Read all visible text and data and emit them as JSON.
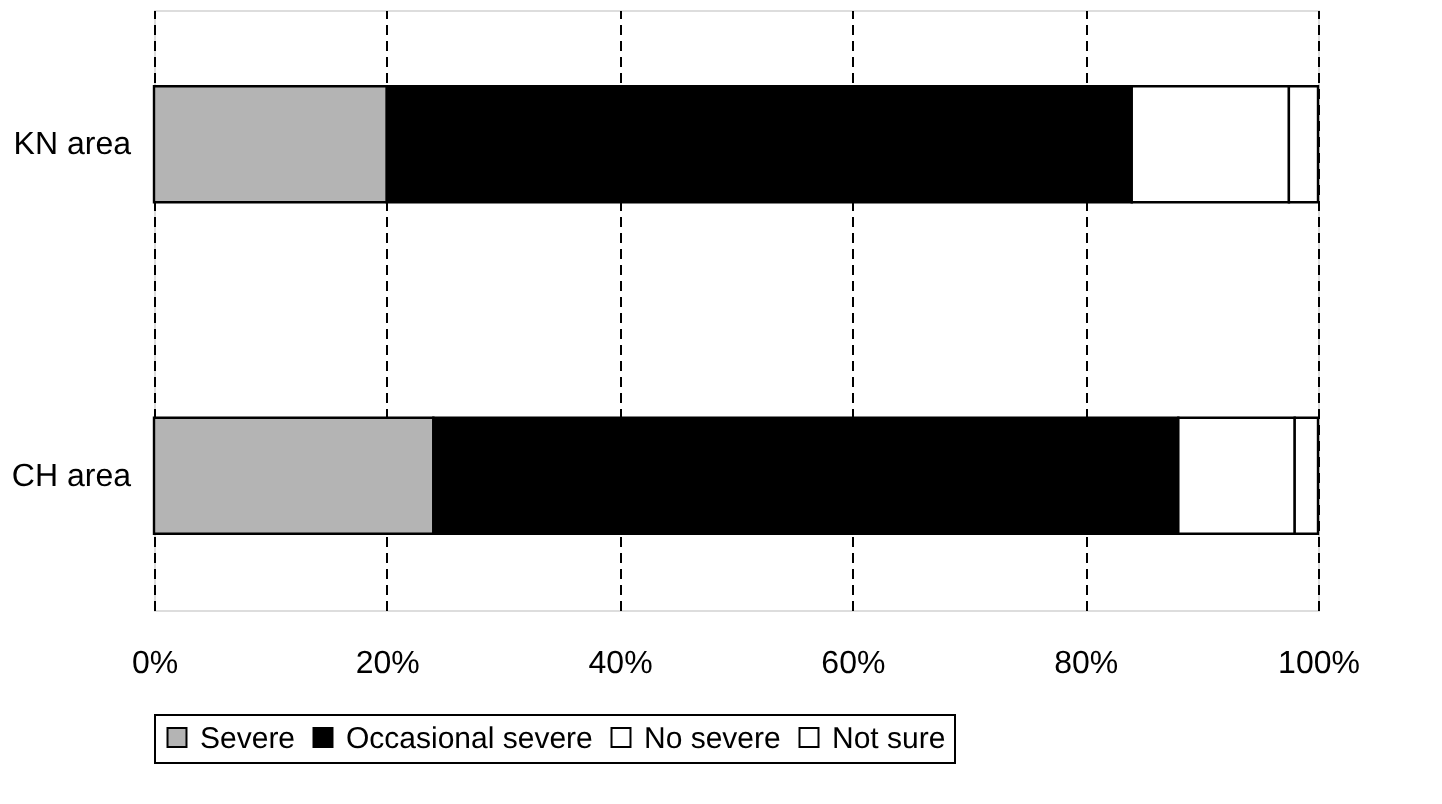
{
  "chart_data": {
    "type": "bar",
    "orientation": "horizontal",
    "stacked": true,
    "categories": [
      "KN area",
      "CH area"
    ],
    "series": [
      {
        "name": "Severe",
        "color": "#b4b4b4",
        "values": [
          20,
          24
        ]
      },
      {
        "name": "Occasional severe",
        "color": "#000000",
        "values": [
          64,
          64
        ]
      },
      {
        "name": "No severe",
        "color": "#ffffff",
        "values": [
          13.5,
          10
        ]
      },
      {
        "name": "Not sure",
        "color": "#ffffff",
        "values": [
          2.5,
          2
        ]
      }
    ],
    "xlim": [
      0,
      100
    ],
    "xticks": [
      {
        "value": 0,
        "label": "0%"
      },
      {
        "value": 20,
        "label": "20%"
      },
      {
        "value": 40,
        "label": "40%"
      },
      {
        "value": 60,
        "label": "60%"
      },
      {
        "value": 80,
        "label": "80%"
      },
      {
        "value": 100,
        "label": "100%"
      }
    ],
    "grid": "x",
    "legend": "bottom"
  }
}
